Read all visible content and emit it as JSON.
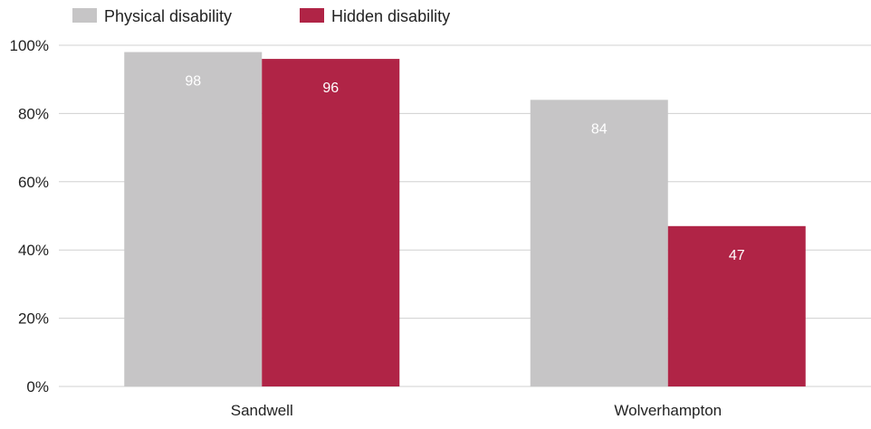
{
  "chart_data": {
    "type": "bar",
    "title": "",
    "xlabel": "",
    "ylabel": "",
    "categories": [
      "Sandwell",
      "Wolverhampton"
    ],
    "series": [
      {
        "name": "Physical disability",
        "values": [
          98,
          84
        ],
        "color": "#c6c5c6",
        "label_color": "#ffffff"
      },
      {
        "name": "Hidden disability",
        "values": [
          96,
          47
        ],
        "color": "#b02446",
        "label_color": "#ffffff"
      }
    ],
    "data_labels": [
      [
        "98",
        "84"
      ],
      [
        "96",
        "47"
      ]
    ],
    "ylim": [
      0,
      100
    ],
    "yticks": [
      "0%",
      "20%",
      "40%",
      "60%",
      "80%",
      "100%"
    ],
    "grid": true,
    "legend": "top-left"
  }
}
